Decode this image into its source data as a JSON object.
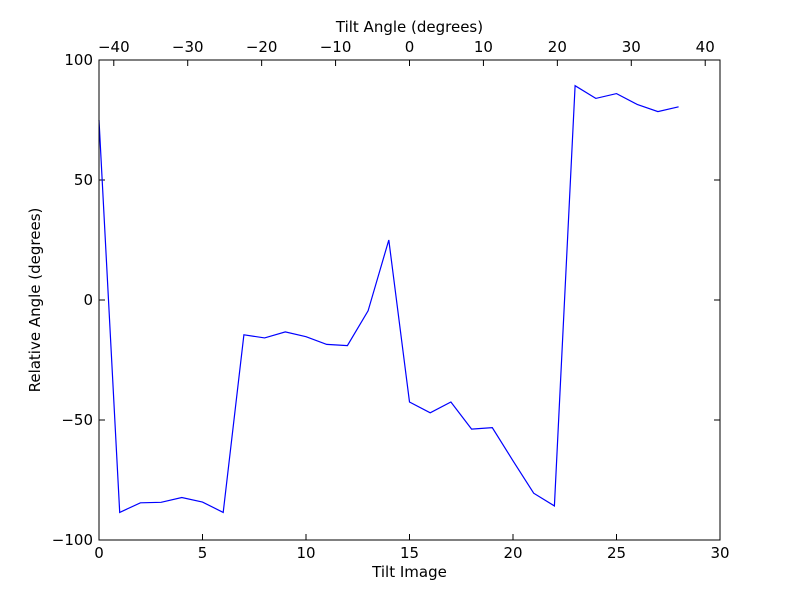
{
  "chart_data": {
    "type": "line",
    "xlabel": "Tilt Image",
    "ylabel": "Relative Angle (degrees)",
    "top_xlabel": "Tilt Angle (degrees)",
    "xlim": [
      0,
      30
    ],
    "ylim": [
      -100,
      100
    ],
    "top_xlim": [
      -42,
      42
    ],
    "x_ticks": [
      0,
      5,
      10,
      15,
      20,
      25,
      30
    ],
    "x_tick_labels": [
      "0",
      "5",
      "10",
      "15",
      "20",
      "25",
      "30"
    ],
    "y_ticks": [
      -100,
      -50,
      0,
      50,
      100
    ],
    "y_tick_labels": [
      "−100",
      "−50",
      "0",
      "50",
      "100"
    ],
    "top_x_ticks": [
      -40,
      -30,
      -20,
      -10,
      0,
      10,
      20,
      30,
      40
    ],
    "top_x_tick_labels": [
      "−40",
      "−30",
      "−20",
      "−10",
      "0",
      "10",
      "20",
      "30",
      "40"
    ],
    "grid": false,
    "line_color": "#0000ff",
    "series": [
      {
        "x": [
          0,
          1,
          2,
          3,
          4,
          5,
          6,
          7,
          8,
          9,
          10,
          11,
          12,
          13,
          14,
          15,
          16,
          17,
          18,
          19,
          20,
          21,
          22,
          23,
          24,
          25,
          26,
          27,
          28
        ],
        "values": [
          75,
          -88.5,
          -84.5,
          -84.3,
          -82.3,
          -84.2,
          -88.5,
          -14.5,
          -15.8,
          -13.3,
          -15.3,
          -18.5,
          -19,
          -4.5,
          25,
          -42.5,
          -47,
          -42.5,
          -53.8,
          -53.2,
          -67,
          -80.5,
          -85.8,
          89.3,
          84,
          86,
          81.5,
          78.5,
          80.5
        ]
      }
    ]
  }
}
